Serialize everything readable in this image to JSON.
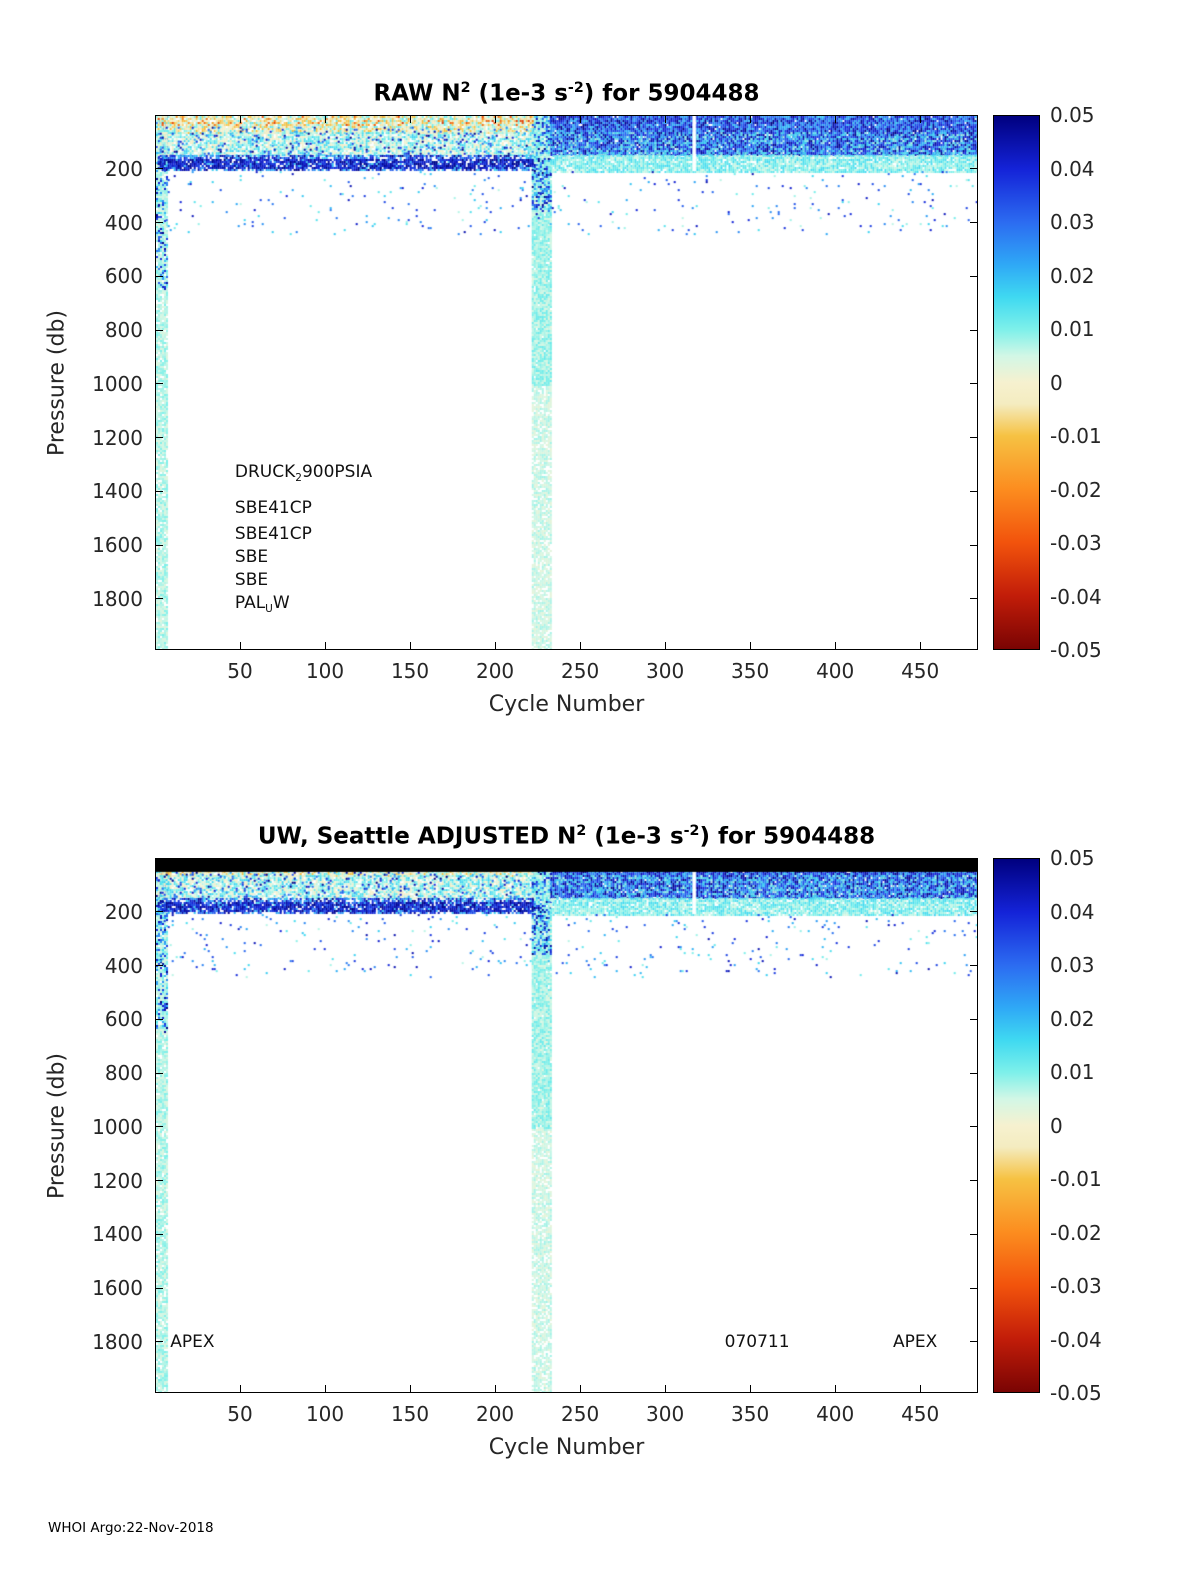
{
  "footer": "WHOI Argo:22-Nov-2018",
  "colormap": [
    [
      -0.05,
      "#7a0403"
    ],
    [
      -0.04,
      "#c21d09"
    ],
    [
      -0.03,
      "#f2530c"
    ],
    [
      -0.02,
      "#fc8d1f"
    ],
    [
      -0.01,
      "#f6c243"
    ],
    [
      -0.004,
      "#f4ecc0"
    ],
    [
      0.0,
      "#f6f1cf"
    ],
    [
      0.005,
      "#d2f7e6"
    ],
    [
      0.01,
      "#7df0ea"
    ],
    [
      0.016,
      "#3fd9f1"
    ],
    [
      0.022,
      "#2fa9f6"
    ],
    [
      0.03,
      "#2c6cf1"
    ],
    [
      0.04,
      "#1423d8"
    ],
    [
      0.05,
      "#00007f"
    ]
  ],
  "chart_data": [
    {
      "type": "heatmap",
      "panel": "raw",
      "title_parts": [
        {
          "t": "RAW N"
        },
        {
          "sup": "2"
        },
        {
          "t": " (1e-3 s"
        },
        {
          "sup": "-2"
        },
        {
          "t": ") for 5904488"
        }
      ],
      "xlabel": "Cycle Number",
      "ylabel": "Pressure (db)",
      "xlim": [
        0,
        484
      ],
      "plim": [
        0,
        1990
      ],
      "y_axis_reversed": true,
      "xticks": [
        50,
        100,
        150,
        200,
        250,
        300,
        350,
        400,
        450
      ],
      "yticks": [
        200,
        400,
        600,
        800,
        1000,
        1200,
        1400,
        1600,
        1800
      ],
      "colorbar": {
        "vmin": -0.05,
        "vmax": 0.05,
        "ticks": [
          "0.05",
          "0.04",
          "0.03",
          "0.02",
          "0.01",
          "0",
          "-0.01",
          "-0.02",
          "-0.03",
          "-0.04",
          "-0.05"
        ]
      },
      "annotations": [
        {
          "x": 47,
          "p": 1330,
          "parts": [
            {
              "t": "DRUCK"
            },
            {
              "sub": "2"
            },
            {
              "t": "900PSIA"
            }
          ]
        },
        {
          "x": 47,
          "p": 1462,
          "parts": [
            {
              "t": "SBE41CP"
            }
          ]
        },
        {
          "x": 47,
          "p": 1560,
          "parts": [
            {
              "t": "SBE41CP"
            }
          ]
        },
        {
          "x": 47,
          "p": 1645,
          "parts": [
            {
              "t": "SBE"
            }
          ]
        },
        {
          "x": 47,
          "p": 1730,
          "parts": [
            {
              "t": "SBE"
            }
          ]
        },
        {
          "x": 47,
          "p": 1820,
          "parts": [
            {
              "t": "PAL"
            },
            {
              "sub": "U"
            },
            {
              "t": "W"
            }
          ]
        }
      ],
      "data_summary": "N2 signal confined to upper ~200 db for all cycles. Cycles ~1-5 and ~222-232 sample deep (to ~1000-1950 db) with weak positive N2 (pale cyan). Cycles 1-221: mixed weak +/- N2 near surface (cream/cyan/orange speckle) with strong positive dark-blue band at ~140-200 db. Cycles 232-484: strong positive N2 (0.02-0.05, dark blue) from surface to ~145 db, weaker cyan 145-200 db. Sparse positive specks 200-440 db.",
      "regions": [
        {
          "x": [
            0,
            6
          ],
          "p": [
            0,
            1990
          ],
          "v": [
            0.003,
            0.01
          ],
          "d": 0.9,
          "s": 2
        },
        {
          "x": [
            0,
            6
          ],
          "p": [
            0,
            650
          ],
          "v": [
            0.012,
            0.05
          ],
          "d": 0.3,
          "s": 2
        },
        {
          "x": [
            221,
            232
          ],
          "p": [
            0,
            1990
          ],
          "v": [
            0.002,
            0.008
          ],
          "d": 0.8,
          "s": 2
        },
        {
          "x": [
            221,
            232
          ],
          "p": [
            0,
            1000
          ],
          "v": [
            0.004,
            0.012
          ],
          "d": 0.9,
          "s": 2
        },
        {
          "x": [
            221,
            232
          ],
          "p": [
            0,
            350
          ],
          "v": [
            0.01,
            0.05
          ],
          "d": 0.45,
          "s": 2
        },
        {
          "x": [
            1,
            221
          ],
          "p": [
            0,
            60
          ],
          "v": [
            -0.012,
            0.013
          ],
          "d": 0.9,
          "s": 2
        },
        {
          "x": [
            1,
            221
          ],
          "p": [
            0,
            30
          ],
          "v": [
            -0.035,
            -0.005
          ],
          "d": 0.12,
          "s": 2
        },
        {
          "x": [
            1,
            221
          ],
          "p": [
            60,
            145
          ],
          "v": [
            -0.004,
            0.018
          ],
          "d": 0.85,
          "s": 2
        },
        {
          "x": [
            1,
            221
          ],
          "p": [
            40,
            145
          ],
          "v": [
            0.02,
            0.05
          ],
          "d": 0.1,
          "s": 2
        },
        {
          "x": [
            1,
            221
          ],
          "p": [
            145,
            200
          ],
          "v": [
            0.015,
            0.05
          ],
          "d": 0.7,
          "s": 2
        },
        {
          "x": [
            1,
            221
          ],
          "p": [
            160,
            196
          ],
          "v": [
            0.035,
            0.05
          ],
          "d": 0.6,
          "s": 2
        },
        {
          "x": [
            232,
            484
          ],
          "p": [
            0,
            145
          ],
          "v": [
            0.018,
            0.05
          ],
          "d": 0.97,
          "s": 2
        },
        {
          "x": [
            232,
            484
          ],
          "p": [
            60,
            145
          ],
          "v": [
            0.006,
            0.018
          ],
          "d": 0.25,
          "s": 2
        },
        {
          "x": [
            232,
            484
          ],
          "p": [
            145,
            205
          ],
          "v": [
            0.004,
            0.016
          ],
          "d": 0.9,
          "s": 2
        },
        {
          "x": [
            1,
            484
          ],
          "p": [
            205,
            440
          ],
          "v": [
            0.006,
            0.045
          ],
          "d": 0.025,
          "s": 2
        },
        {
          "x": [
            315.5,
            317.5
          ],
          "p": [
            0,
            205
          ],
          "solid": "#ffffff"
        }
      ]
    },
    {
      "type": "heatmap",
      "panel": "adjusted",
      "title_parts": [
        {
          "t": "UW, Seattle  ADJUSTED N"
        },
        {
          "sup": "2"
        },
        {
          "t": " (1e-3 s"
        },
        {
          "sup": "-2"
        },
        {
          "t": ") for 5904488"
        }
      ],
      "xlabel": "Cycle Number",
      "ylabel": "Pressure (db)",
      "xlim": [
        0,
        484
      ],
      "plim": [
        0,
        1990
      ],
      "y_axis_reversed": true,
      "xticks": [
        50,
        100,
        150,
        200,
        250,
        300,
        350,
        400,
        450
      ],
      "yticks": [
        200,
        400,
        600,
        800,
        1000,
        1200,
        1400,
        1600,
        1800
      ],
      "colorbar": {
        "vmin": -0.05,
        "vmax": 0.05,
        "ticks": [
          "0.05",
          "0.04",
          "0.03",
          "0.02",
          "0.01",
          "0",
          "-0.01",
          "-0.02",
          "-0.03",
          "-0.04",
          "-0.05"
        ]
      },
      "annotations": [
        {
          "x": 9,
          "p": 1800,
          "parts": [
            {
              "t": "APEX"
            }
          ]
        },
        {
          "x": 335,
          "p": 1800,
          "parts": [
            {
              "t": "070711"
            }
          ]
        },
        {
          "x": 434,
          "p": 1800,
          "parts": [
            {
              "t": "APEX"
            }
          ]
        }
      ],
      "data_summary": "Same structure as RAW panel with a solid black marker bar across the top of the axes (surface pressures flagged/adjusted). Deep sampling columns at cycles ~1-5 and ~222-232; strong positive N2 band in upper 200 db, dark blue for cycles >232.",
      "regions": [
        {
          "x": [
            0,
            6
          ],
          "p": [
            0,
            1990
          ],
          "v": [
            0.003,
            0.01
          ],
          "d": 0.9,
          "s": 2
        },
        {
          "x": [
            0,
            6
          ],
          "p": [
            0,
            650
          ],
          "v": [
            0.012,
            0.05
          ],
          "d": 0.3,
          "s": 2
        },
        {
          "x": [
            221,
            232
          ],
          "p": [
            0,
            1990
          ],
          "v": [
            0.002,
            0.008
          ],
          "d": 0.8,
          "s": 2
        },
        {
          "x": [
            221,
            232
          ],
          "p": [
            0,
            1000
          ],
          "v": [
            0.004,
            0.012
          ],
          "d": 0.9,
          "s": 2
        },
        {
          "x": [
            221,
            232
          ],
          "p": [
            0,
            350
          ],
          "v": [
            0.01,
            0.05
          ],
          "d": 0.45,
          "s": 2
        },
        {
          "x": [
            1,
            221
          ],
          "p": [
            0,
            60
          ],
          "v": [
            -0.012,
            0.013
          ],
          "d": 0.9,
          "s": 2
        },
        {
          "x": [
            1,
            221
          ],
          "p": [
            0,
            30
          ],
          "v": [
            -0.035,
            -0.005
          ],
          "d": 0.12,
          "s": 2
        },
        {
          "x": [
            1,
            221
          ],
          "p": [
            60,
            145
          ],
          "v": [
            -0.004,
            0.018
          ],
          "d": 0.85,
          "s": 2
        },
        {
          "x": [
            1,
            221
          ],
          "p": [
            40,
            145
          ],
          "v": [
            0.02,
            0.05
          ],
          "d": 0.1,
          "s": 2
        },
        {
          "x": [
            1,
            221
          ],
          "p": [
            145,
            200
          ],
          "v": [
            0.015,
            0.05
          ],
          "d": 0.7,
          "s": 2
        },
        {
          "x": [
            1,
            221
          ],
          "p": [
            160,
            196
          ],
          "v": [
            0.035,
            0.05
          ],
          "d": 0.6,
          "s": 2
        },
        {
          "x": [
            232,
            484
          ],
          "p": [
            0,
            145
          ],
          "v": [
            0.018,
            0.05
          ],
          "d": 0.97,
          "s": 2
        },
        {
          "x": [
            232,
            484
          ],
          "p": [
            60,
            145
          ],
          "v": [
            0.006,
            0.018
          ],
          "d": 0.25,
          "s": 2
        },
        {
          "x": [
            232,
            484
          ],
          "p": [
            145,
            205
          ],
          "v": [
            0.004,
            0.016
          ],
          "d": 0.9,
          "s": 2
        },
        {
          "x": [
            1,
            484
          ],
          "p": [
            205,
            440
          ],
          "v": [
            0.006,
            0.045
          ],
          "d": 0.025,
          "s": 2
        },
        {
          "x": [
            315.5,
            317.5
          ],
          "p": [
            0,
            205
          ],
          "solid": "#ffffff"
        },
        {
          "x": [
            0,
            484
          ],
          "p": [
            0,
            48
          ],
          "solid": "#000000"
        }
      ]
    }
  ]
}
